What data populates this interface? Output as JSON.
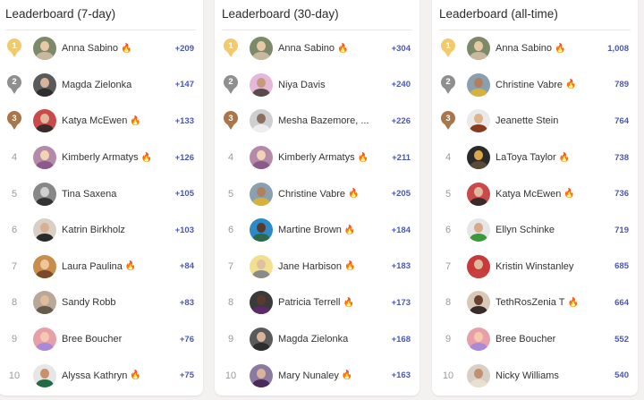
{
  "colors": {
    "gold": "#f2ca6b",
    "silver": "#8f8f8f",
    "bronze": "#a8764a",
    "score": "#4a57b8",
    "fire": "#f26b21"
  },
  "panels": [
    {
      "title": "Leaderboard (7-day)",
      "rows": [
        {
          "rank": "1",
          "name": "Anna Sabino",
          "fire": true,
          "score": "+209"
        },
        {
          "rank": "2",
          "name": "Magda Zielonka",
          "fire": false,
          "score": "+147"
        },
        {
          "rank": "3",
          "name": "Katya McEwen",
          "fire": true,
          "score": "+133"
        },
        {
          "rank": "4",
          "name": "Kimberly Armatys",
          "fire": true,
          "score": "+126"
        },
        {
          "rank": "5",
          "name": "Tina Saxena",
          "fire": false,
          "score": "+105"
        },
        {
          "rank": "6",
          "name": "Katrin Birkholz",
          "fire": false,
          "score": "+103"
        },
        {
          "rank": "7",
          "name": "Laura Paulina",
          "fire": true,
          "score": "+84"
        },
        {
          "rank": "8",
          "name": "Sandy Robb",
          "fire": false,
          "score": "+83"
        },
        {
          "rank": "9",
          "name": "Bree Boucher",
          "fire": false,
          "score": "+76"
        },
        {
          "rank": "10",
          "name": "Alyssa Kathryn",
          "fire": true,
          "score": "+75"
        }
      ]
    },
    {
      "title": "Leaderboard (30-day)",
      "rows": [
        {
          "rank": "1",
          "name": "Anna Sabino",
          "fire": true,
          "score": "+304"
        },
        {
          "rank": "2",
          "name": "Niya Davis",
          "fire": false,
          "score": "+240"
        },
        {
          "rank": "3",
          "name": "Mesha Bazemore, ...",
          "fire": false,
          "score": "+226"
        },
        {
          "rank": "4",
          "name": "Kimberly Armatys",
          "fire": true,
          "score": "+211"
        },
        {
          "rank": "5",
          "name": "Christine Vabre",
          "fire": true,
          "score": "+205"
        },
        {
          "rank": "6",
          "name": "Martine Brown",
          "fire": true,
          "score": "+184"
        },
        {
          "rank": "7",
          "name": "Jane Harbison",
          "fire": true,
          "score": "+183"
        },
        {
          "rank": "8",
          "name": "Patricia Terrell",
          "fire": true,
          "score": "+173"
        },
        {
          "rank": "9",
          "name": "Magda Zielonka",
          "fire": false,
          "score": "+168"
        },
        {
          "rank": "10",
          "name": "Mary Nunaley",
          "fire": true,
          "score": "+163"
        }
      ]
    },
    {
      "title": "Leaderboard (all-time)",
      "rows": [
        {
          "rank": "1",
          "name": "Anna Sabino",
          "fire": true,
          "score": "1,008"
        },
        {
          "rank": "2",
          "name": "Christine Vabre",
          "fire": true,
          "score": "789"
        },
        {
          "rank": "3",
          "name": "Jeanette Stein",
          "fire": false,
          "score": "764"
        },
        {
          "rank": "4",
          "name": "LaToya Taylor",
          "fire": true,
          "score": "738"
        },
        {
          "rank": "5",
          "name": "Katya McEwen",
          "fire": true,
          "score": "736"
        },
        {
          "rank": "6",
          "name": "Ellyn Schinke",
          "fire": false,
          "score": "719"
        },
        {
          "rank": "7",
          "name": "Kristin Winstanley",
          "fire": false,
          "score": "685"
        },
        {
          "rank": "8",
          "name": "TethRosZenia T",
          "fire": true,
          "score": "664"
        },
        {
          "rank": "9",
          "name": "Bree Boucher",
          "fire": false,
          "score": "552"
        },
        {
          "rank": "10",
          "name": "Nicky Williams",
          "fire": false,
          "score": "540"
        }
      ]
    }
  ],
  "icons": {
    "fire": "fire-icon",
    "medal": "medal-icon",
    "avatar": "avatar"
  }
}
